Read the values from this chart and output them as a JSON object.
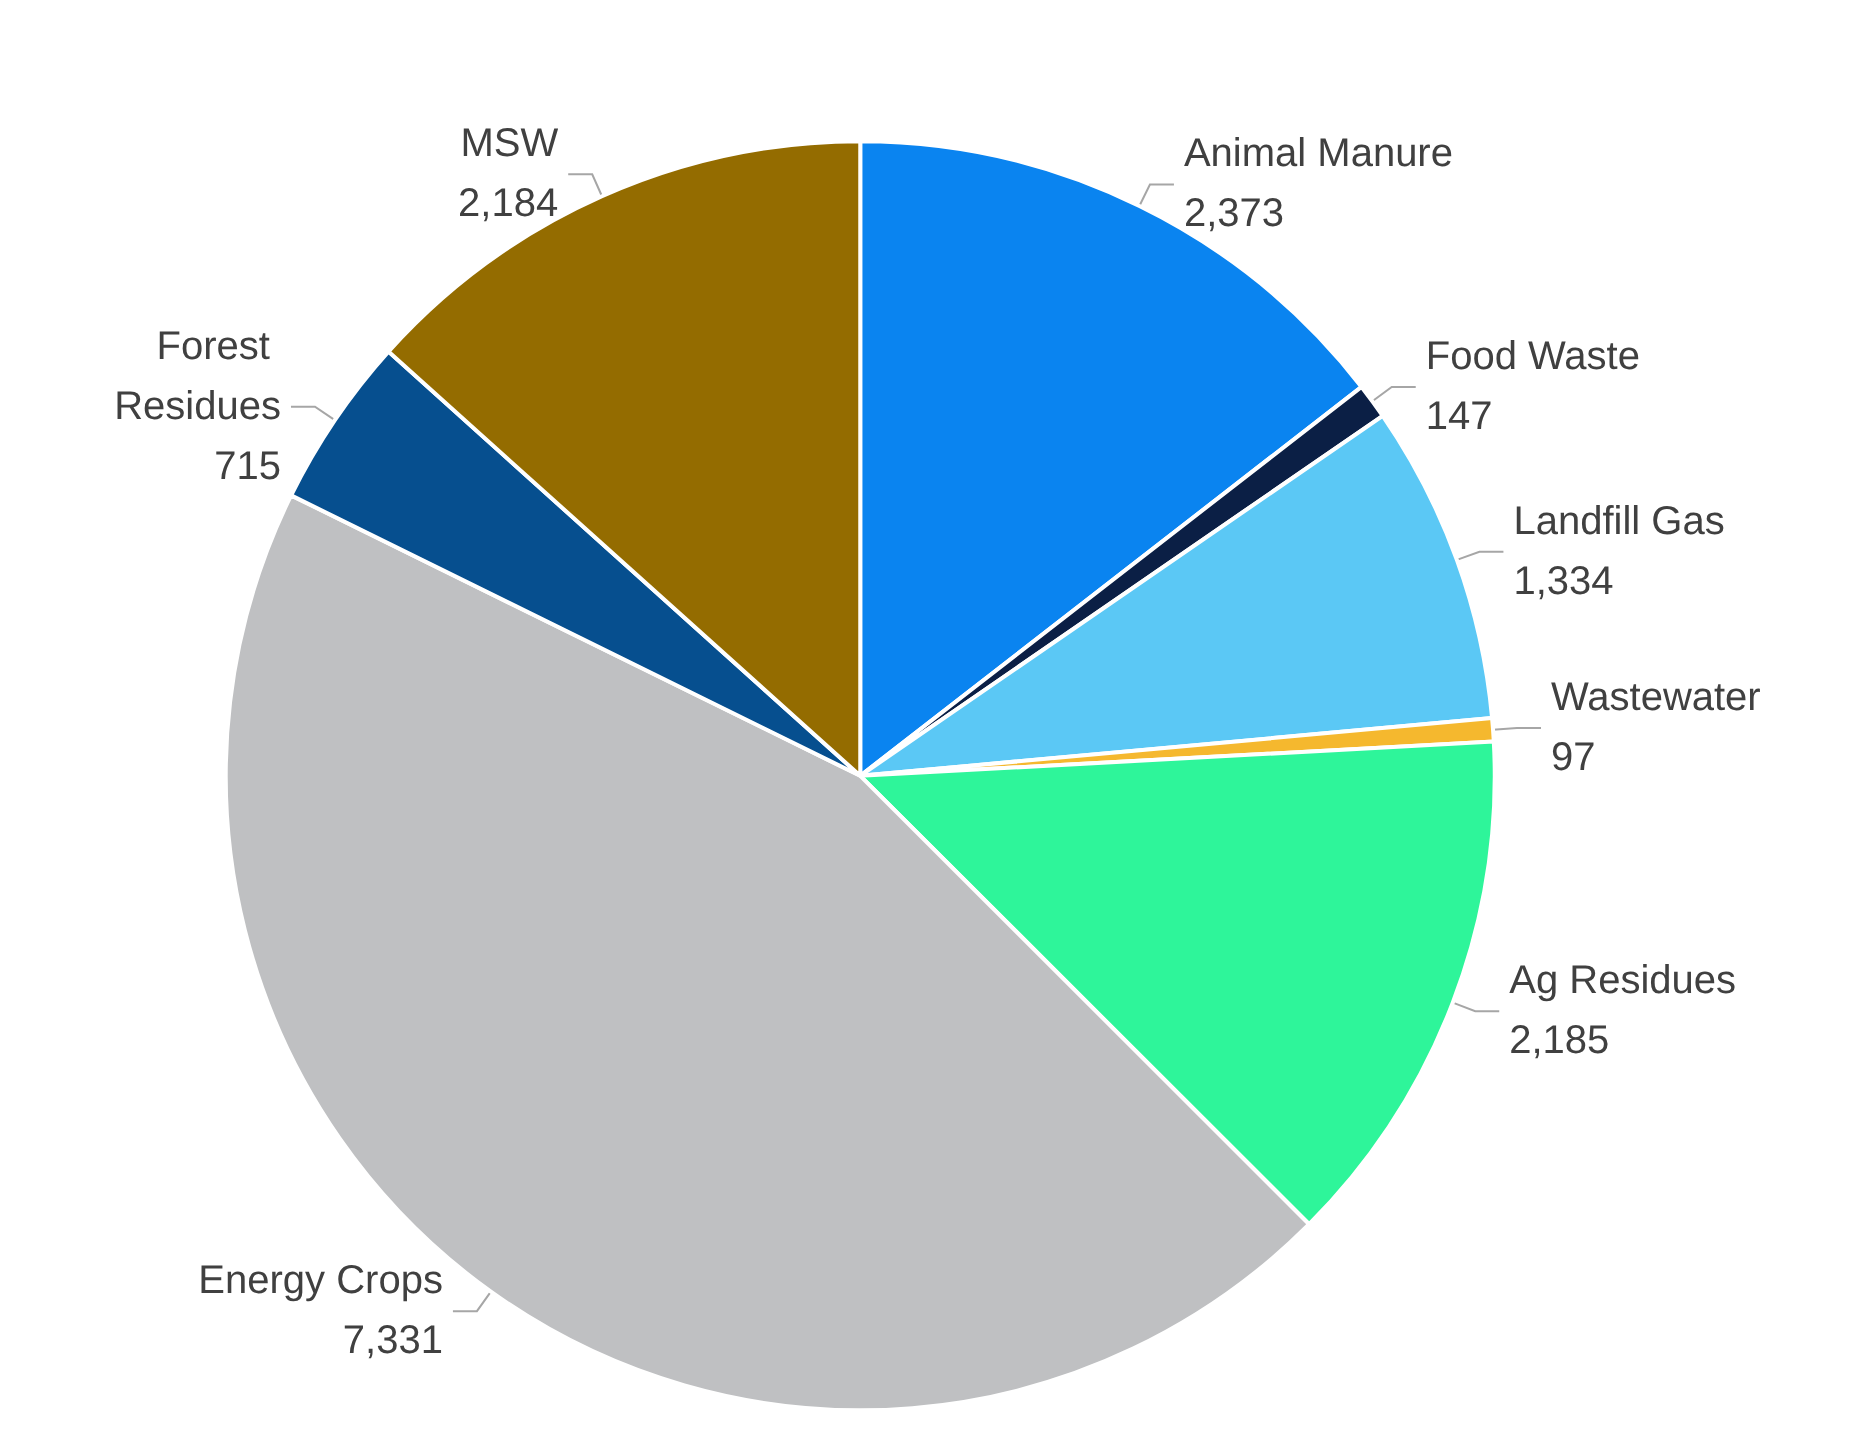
{
  "chart_data": {
    "type": "pie",
    "categories": [
      "Animal Manure",
      "Food Waste",
      "Landfill Gas",
      "Wastewater",
      "Ag Residues",
      "Energy Crops",
      "Forest Residues",
      "MSW"
    ],
    "values": [
      2373,
      147,
      1334,
      97,
      2185,
      7331,
      715,
      2184
    ],
    "colors": [
      "#0a84f0",
      "#0b1f45",
      "#5bc8f5",
      "#f5b82e",
      "#2ef59a",
      "#bfc0c2",
      "#064f8f",
      "#946c00"
    ],
    "value_labels": [
      "2,373",
      "147",
      "1,334",
      "97",
      "2,185",
      "7,331",
      "715",
      "2,184"
    ]
  }
}
